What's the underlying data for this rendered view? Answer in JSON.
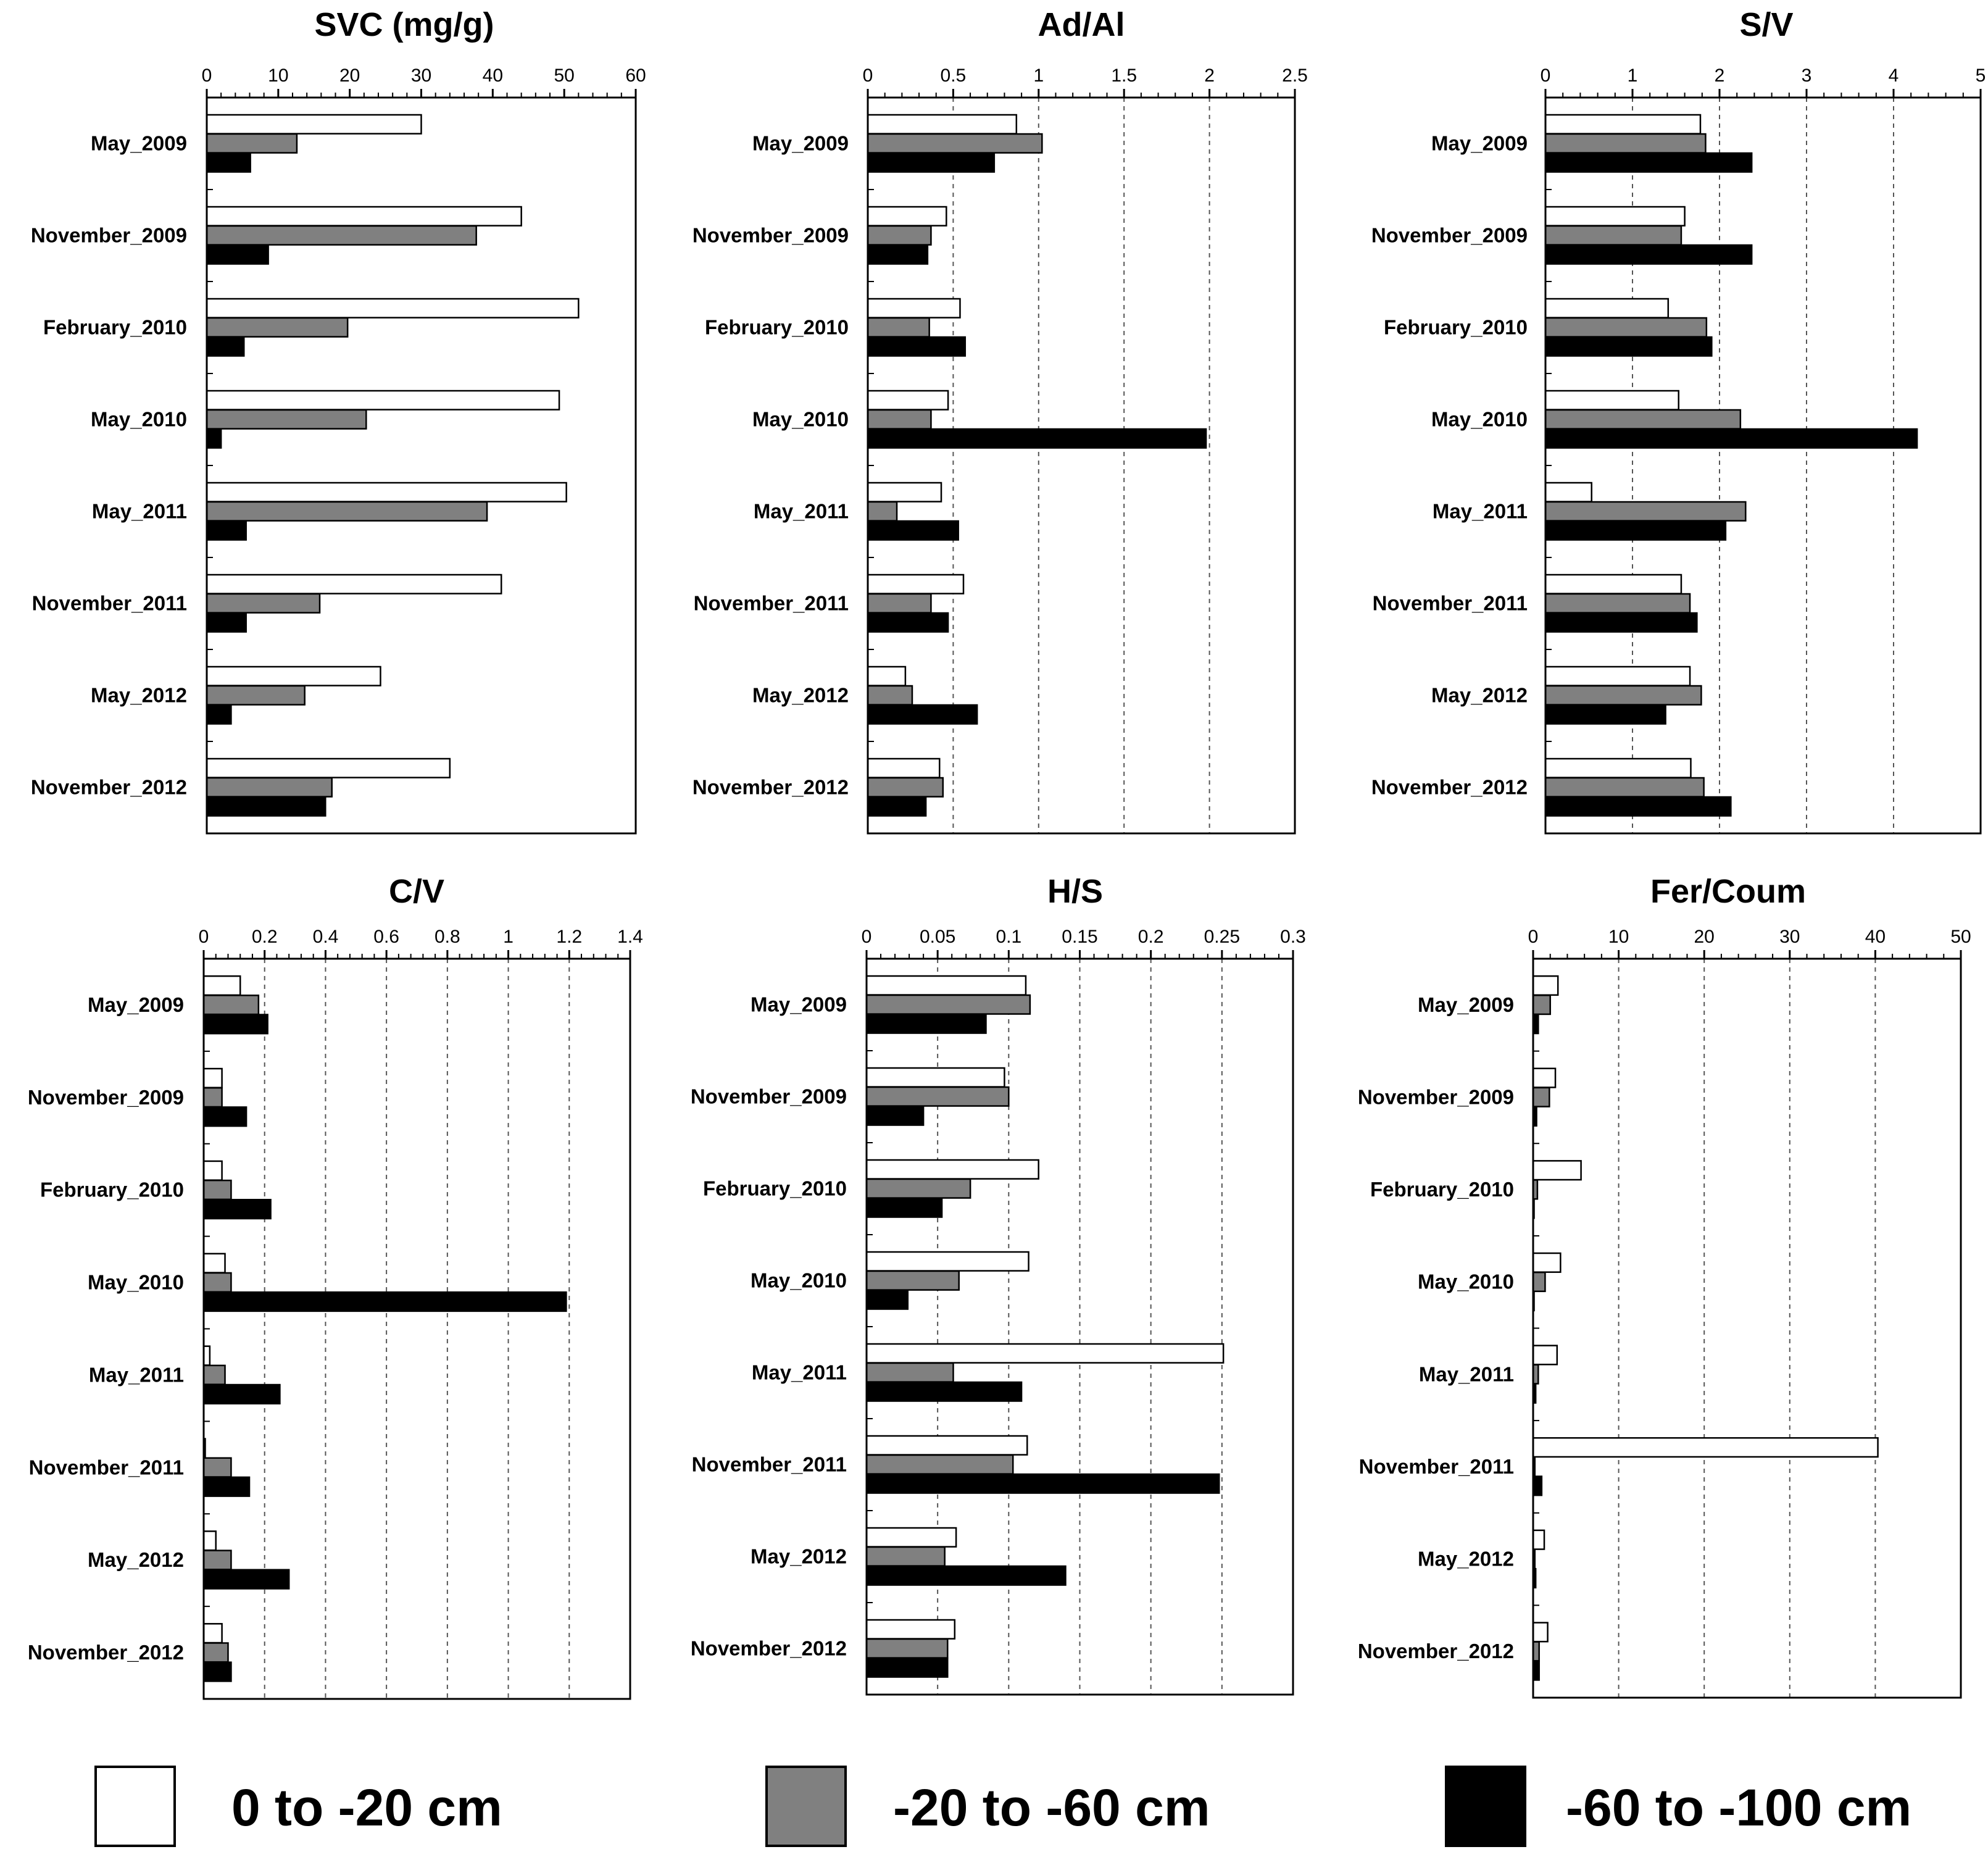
{
  "legend": [
    {
      "label": "0 to -20 cm",
      "color": "#ffffff"
    },
    {
      "label": "-20 to -60 cm",
      "color": "#808080"
    },
    {
      "label": "-60 to -100 cm",
      "color": "#000000"
    }
  ],
  "chart_data": [
    {
      "type": "bar",
      "title": "SVC (mg/g)",
      "categories": [
        "May_2009",
        "November_2009",
        "February_2010",
        "May_2010",
        "May_2011",
        "November_2011",
        "May_2012",
        "November_2012"
      ],
      "xlim": [
        0,
        60
      ],
      "xticks": [
        "0",
        "10",
        "20",
        "30",
        "40",
        "50",
        "60"
      ],
      "grid": false,
      "series": [
        {
          "name": "0 to -20 cm",
          "values": [
            30,
            44,
            52,
            49.3,
            50.3,
            41.2,
            24.3,
            34
          ]
        },
        {
          "name": "-20 to -60 cm",
          "values": [
            12.6,
            37.7,
            19.7,
            22.3,
            39.2,
            15.8,
            13.7,
            17.5
          ]
        },
        {
          "name": "-60 to -100 cm",
          "values": [
            6.1,
            8.6,
            5.2,
            2,
            5.5,
            5.5,
            3.4,
            16.6
          ]
        }
      ]
    },
    {
      "type": "bar",
      "title": "Ad/Al",
      "categories": [
        "May_2009",
        "November_2009",
        "February_2010",
        "May_2010",
        "May_2011",
        "November_2011",
        "May_2012",
        "November_2012"
      ],
      "xlim": [
        0,
        2.5
      ],
      "xticks": [
        "0",
        "0.5",
        "1",
        "1.5",
        "2",
        "2.5"
      ],
      "grid": true,
      "series": [
        {
          "name": "0 to -20 cm",
          "values": [
            0.87,
            0.46,
            0.54,
            0.47,
            0.43,
            0.56,
            0.22,
            0.42
          ]
        },
        {
          "name": "-20 to -60 cm",
          "values": [
            1.02,
            0.37,
            0.36,
            0.37,
            0.17,
            0.37,
            0.26,
            0.44
          ]
        },
        {
          "name": "-60 to -100 cm",
          "values": [
            0.74,
            0.35,
            0.57,
            1.98,
            0.53,
            0.47,
            0.64,
            0.34
          ]
        }
      ]
    },
    {
      "type": "bar",
      "title": "S/V",
      "categories": [
        "May_2009",
        "November_2009",
        "February_2010",
        "May_2010",
        "May_2011",
        "November_2011",
        "May_2012",
        "November_2012"
      ],
      "xlim": [
        0,
        5
      ],
      "xticks": [
        "0",
        "1",
        "2",
        "3",
        "4",
        "5"
      ],
      "grid": true,
      "series": [
        {
          "name": "0 to -20 cm",
          "values": [
            1.78,
            1.6,
            1.41,
            1.53,
            0.53,
            1.56,
            1.66,
            1.67
          ]
        },
        {
          "name": "-20 to -60 cm",
          "values": [
            1.84,
            1.56,
            1.85,
            2.24,
            2.3,
            1.66,
            1.79,
            1.82
          ]
        },
        {
          "name": "-60 to -100 cm",
          "values": [
            2.37,
            2.37,
            1.91,
            4.27,
            2.07,
            1.74,
            1.38,
            2.13
          ]
        }
      ]
    },
    {
      "type": "bar",
      "title": "C/V",
      "categories": [
        "May_2009",
        "November_2009",
        "February_2010",
        "May_2010",
        "May_2011",
        "November_2011",
        "May_2012",
        "November_2012"
      ],
      "xlim": [
        0,
        1.4
      ],
      "xticks": [
        "0",
        "0.2",
        "0.4",
        "0.6",
        "0.8",
        "1",
        "1.2",
        "1.4"
      ],
      "grid": true,
      "series": [
        {
          "name": "0 to -20 cm",
          "values": [
            0.12,
            0.06,
            0.06,
            0.07,
            0.02,
            0.005,
            0.04,
            0.06
          ]
        },
        {
          "name": "-20 to -60 cm",
          "values": [
            0.18,
            0.06,
            0.09,
            0.09,
            0.07,
            0.09,
            0.09,
            0.08
          ]
        },
        {
          "name": "-60 to -100 cm",
          "values": [
            0.21,
            0.14,
            0.22,
            1.19,
            0.25,
            0.15,
            0.28,
            0.09
          ]
        }
      ]
    },
    {
      "type": "bar",
      "title": "H/S",
      "categories": [
        "May_2009",
        "November_2009",
        "February_2010",
        "May_2010",
        "May_2011",
        "November_2011",
        "May_2012",
        "November_2012"
      ],
      "xlim": [
        0,
        0.3
      ],
      "xticks": [
        "0",
        "0.05",
        "0.1",
        "0.15",
        "0.2",
        "0.25",
        "0.3"
      ],
      "grid": true,
      "series": [
        {
          "name": "0 to -20 cm",
          "values": [
            0.112,
            0.097,
            0.121,
            0.114,
            0.251,
            0.113,
            0.063,
            0.062
          ]
        },
        {
          "name": "-20 to -60 cm",
          "values": [
            0.115,
            0.1,
            0.073,
            0.065,
            0.061,
            0.103,
            0.055,
            0.057
          ]
        },
        {
          "name": "-60 to -100 cm",
          "values": [
            0.084,
            0.04,
            0.053,
            0.029,
            0.109,
            0.248,
            0.14,
            0.057
          ]
        }
      ]
    },
    {
      "type": "bar",
      "title": "Fer/Coum",
      "categories": [
        "May_2009",
        "November_2009",
        "February_2010",
        "May_2010",
        "May_2011",
        "November_2011",
        "May_2012",
        "November_2012"
      ],
      "xlim": [
        0,
        50
      ],
      "xticks": [
        "0",
        "10",
        "20",
        "30",
        "40",
        "50"
      ],
      "grid": true,
      "series": [
        {
          "name": "0 to -20 cm",
          "values": [
            2.9,
            2.6,
            5.6,
            3.2,
            2.8,
            40.3,
            1.3,
            1.7
          ]
        },
        {
          "name": "-20 to -60 cm",
          "values": [
            2,
            1.9,
            0.5,
            1.4,
            0.6,
            0.2,
            0.2,
            0.7
          ]
        },
        {
          "name": "-60 to -100 cm",
          "values": [
            0.6,
            0.4,
            0.1,
            0.1,
            0.3,
            1,
            0.3,
            0.7
          ]
        }
      ]
    }
  ]
}
